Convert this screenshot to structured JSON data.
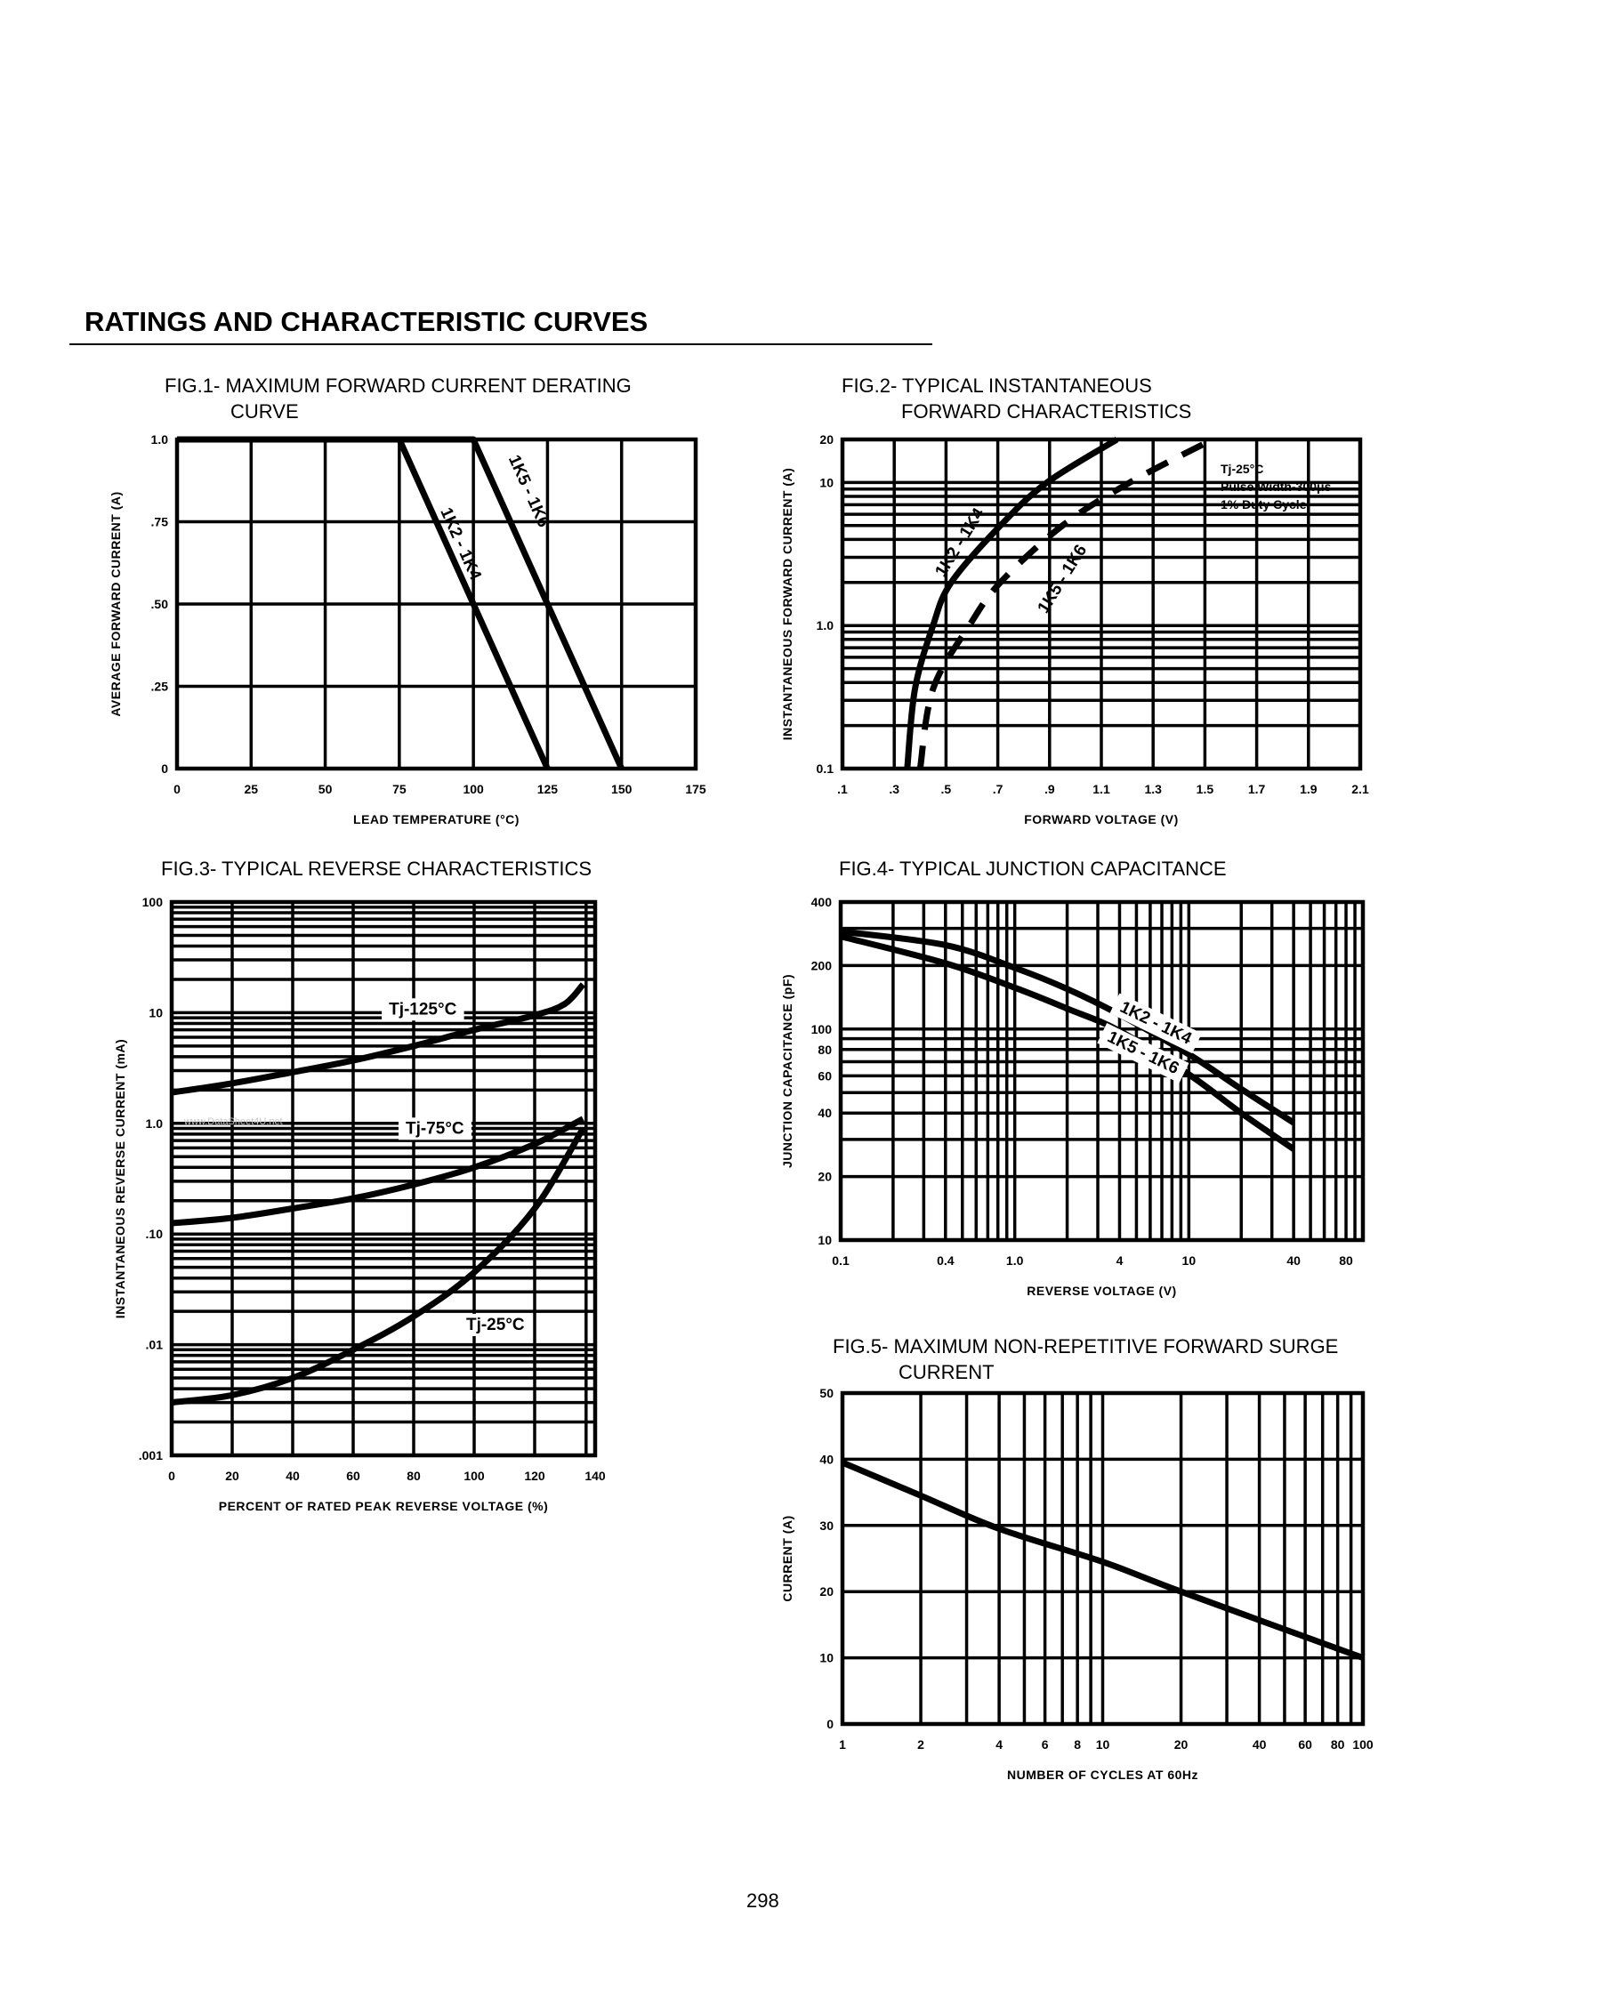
{
  "page": {
    "heading": "RATINGS AND CHARACTERISTIC CURVES",
    "page_number": "298",
    "watermark": "www.DataSheet4U.net"
  },
  "chart_data": [
    {
      "type": "line",
      "title": [
        "FIG.1- MAXIMUM FORWARD CURRENT DERATING",
        "CURVE"
      ],
      "xlabel": "LEAD TEMPERATURE (°C)",
      "ylabel": "AVERAGE FORWARD CURRENT (A)",
      "xscale": "linear",
      "yscale": "linear",
      "xlim": [
        0,
        175
      ],
      "ylim": [
        0,
        1.0
      ],
      "grid": true,
      "x_ticks": [
        {
          "value": 0,
          "label": "0"
        },
        {
          "value": 25,
          "label": "25"
        },
        {
          "value": 50,
          "label": "50"
        },
        {
          "value": 75,
          "label": "75"
        },
        {
          "value": 100,
          "label": "100"
        },
        {
          "value": 125,
          "label": "125"
        },
        {
          "value": 150,
          "label": "150"
        },
        {
          "value": 175,
          "label": "175"
        }
      ],
      "y_ticks": [
        {
          "value": 0,
          "label": "0"
        },
        {
          "value": 0.25,
          "label": ".25"
        },
        {
          "value": 0.5,
          "label": ".50"
        },
        {
          "value": 0.75,
          "label": ".75"
        },
        {
          "value": 1.0,
          "label": "1.0"
        }
      ],
      "series": [
        {
          "name": "1K2 - 1K4",
          "style": "solid",
          "points": [
            [
              0,
              1.0
            ],
            [
              75,
              1.0
            ],
            [
              125,
              0
            ]
          ]
        },
        {
          "name": "1K5 - 1K6",
          "style": "solid",
          "points": [
            [
              0,
              1.0
            ],
            [
              100,
              1.0
            ],
            [
              150,
              0
            ]
          ]
        }
      ],
      "notes": []
    },
    {
      "type": "line",
      "title": [
        "FIG.2- TYPICAL INSTANTANEOUS",
        "FORWARD CHARACTERISTICS"
      ],
      "xlabel": "FORWARD VOLTAGE (V)",
      "ylabel": "INSTANTANEOUS FORWARD CURRENT (A)",
      "xscale": "linear",
      "yscale": "log",
      "xlim": [
        0.1,
        2.1
      ],
      "ylim": [
        0.1,
        20
      ],
      "grid": true,
      "x_ticks": [
        {
          "value": 0.1,
          "label": ".1"
        },
        {
          "value": 0.3,
          "label": ".3"
        },
        {
          "value": 0.5,
          "label": ".5"
        },
        {
          "value": 0.7,
          "label": ".7"
        },
        {
          "value": 0.9,
          "label": ".9"
        },
        {
          "value": 1.1,
          "label": "1.1"
        },
        {
          "value": 1.3,
          "label": "1.3"
        },
        {
          "value": 1.5,
          "label": "1.5"
        },
        {
          "value": 1.7,
          "label": "1.7"
        },
        {
          "value": 1.9,
          "label": "1.9"
        },
        {
          "value": 2.1,
          "label": "2.1"
        }
      ],
      "y_ticks": [
        {
          "value": 0.1,
          "label": "0.1"
        },
        {
          "value": 1,
          "label": "1.0"
        },
        {
          "value": 10,
          "label": "10"
        },
        {
          "value": 20,
          "label": "20"
        }
      ],
      "series": [
        {
          "name": "1K2 - 1K4",
          "style": "solid",
          "points": [
            [
              0.35,
              0.1
            ],
            [
              0.38,
              0.36
            ],
            [
              0.45,
              1
            ],
            [
              0.52,
              2
            ],
            [
              0.71,
              5
            ],
            [
              0.89,
              10
            ],
            [
              1.16,
              20
            ]
          ]
        },
        {
          "name": "1K5 - 1K6",
          "style": "dashed",
          "points": [
            [
              0.4,
              0.1
            ],
            [
              0.45,
              0.36
            ],
            [
              0.59,
              1
            ],
            [
              0.71,
              2
            ],
            [
              0.95,
              5
            ],
            [
              1.21,
              10
            ],
            [
              1.53,
              20
            ]
          ]
        }
      ],
      "notes": [
        "Tj-25°C",
        "Pulse Width-300μs",
        "1% Duty Cycle"
      ]
    },
    {
      "type": "line",
      "title": [
        "FIG.3- TYPICAL REVERSE CHARACTERISTICS"
      ],
      "xlabel": "PERCENT OF RATED PEAK REVERSE VOLTAGE (%)",
      "ylabel": "INSTANTANEOUS REVERSE CURRENT (mA)",
      "xscale": "linear",
      "yscale": "log",
      "xlim": [
        0,
        140
      ],
      "ylim": [
        0.001,
        100
      ],
      "grid": true,
      "x_ticks": [
        {
          "value": 0,
          "label": "0"
        },
        {
          "value": 20,
          "label": "20"
        },
        {
          "value": 40,
          "label": "40"
        },
        {
          "value": 60,
          "label": "60"
        },
        {
          "value": 80,
          "label": "80"
        },
        {
          "value": 100,
          "label": "100"
        },
        {
          "value": 120,
          "label": "120"
        },
        {
          "value": 140,
          "label": "140"
        }
      ],
      "y_ticks": [
        {
          "value": 0.001,
          "label": ".001"
        },
        {
          "value": 0.01,
          "label": ".01"
        },
        {
          "value": 0.1,
          "label": ".10"
        },
        {
          "value": 1,
          "label": "1.0"
        },
        {
          "value": 10,
          "label": "10"
        },
        {
          "value": 100,
          "label": "100"
        }
      ],
      "series": [
        {
          "name": "Tj-125°C",
          "style": "solid",
          "points": [
            [
              0,
              1.9
            ],
            [
              20,
              2.3
            ],
            [
              40,
              2.9
            ],
            [
              60,
              3.7
            ],
            [
              80,
              5
            ],
            [
              100,
              7
            ],
            [
              120,
              9.5
            ],
            [
              130,
              12
            ],
            [
              136,
              18
            ]
          ]
        },
        {
          "name": "Tj-75°C",
          "style": "solid",
          "points": [
            [
              0,
              0.125
            ],
            [
              20,
              0.14
            ],
            [
              40,
              0.17
            ],
            [
              60,
              0.21
            ],
            [
              80,
              0.28
            ],
            [
              100,
              0.4
            ],
            [
              120,
              0.65
            ],
            [
              136,
              1.1
            ]
          ]
        },
        {
          "name": "Tj-25°C",
          "style": "solid",
          "points": [
            [
              0,
              0.003
            ],
            [
              20,
              0.0035
            ],
            [
              40,
              0.005
            ],
            [
              60,
              0.009
            ],
            [
              80,
              0.018
            ],
            [
              100,
              0.045
            ],
            [
              120,
              0.17
            ],
            [
              136,
              0.9
            ]
          ]
        }
      ],
      "notes": []
    },
    {
      "type": "line",
      "title": [
        "FIG.4- TYPICAL JUNCTION CAPACITANCE"
      ],
      "xlabel": "REVERSE VOLTAGE (V)",
      "ylabel": "JUNCTION CAPACITANCE (pF)",
      "xscale": "log",
      "yscale": "log",
      "xlim": [
        0.1,
        100
      ],
      "ylim": [
        10,
        400
      ],
      "grid": true,
      "x_ticks": [
        {
          "value": 0.1,
          "label": "0.1"
        },
        {
          "value": 0.4,
          "label": "0.4"
        },
        {
          "value": 1,
          "label": "1.0"
        },
        {
          "value": 4,
          "label": "4"
        },
        {
          "value": 10,
          "label": "10"
        },
        {
          "value": 40,
          "label": "40"
        },
        {
          "value": 80,
          "label": "80"
        }
      ],
      "y_ticks": [
        {
          "value": 10,
          "label": "10"
        },
        {
          "value": 20,
          "label": "20"
        },
        {
          "value": 40,
          "label": "40"
        },
        {
          "value": 60,
          "label": "60"
        },
        {
          "value": 80,
          "label": "80"
        },
        {
          "value": 100,
          "label": "100"
        },
        {
          "value": 200,
          "label": "200"
        },
        {
          "value": 400,
          "label": "400"
        }
      ],
      "series": [
        {
          "name": "1K2 - 1K4",
          "style": "solid",
          "points": [
            [
              0.1,
              290
            ],
            [
              0.4,
              250
            ],
            [
              1,
              195
            ],
            [
              2,
              155
            ],
            [
              4,
              117
            ],
            [
              10,
              76
            ],
            [
              20,
              52
            ],
            [
              40,
              36
            ]
          ]
        },
        {
          "name": "1K5 - 1K6",
          "style": "solid",
          "points": [
            [
              0.1,
              275
            ],
            [
              0.4,
              205
            ],
            [
              1,
              157
            ],
            [
              2,
              125
            ],
            [
              4,
              98
            ],
            [
              10,
              61
            ],
            [
              20,
              40
            ],
            [
              40,
              27
            ]
          ]
        }
      ],
      "notes": []
    },
    {
      "type": "line",
      "title": [
        "FIG.5- MAXIMUM NON-REPETITIVE FORWARD SURGE",
        "CURRENT"
      ],
      "xlabel": "NUMBER OF CYCLES AT 60Hz",
      "ylabel": "CURRENT (A)",
      "xscale": "log",
      "yscale": "linear",
      "xlim": [
        1,
        100
      ],
      "ylim": [
        0,
        50
      ],
      "grid": true,
      "x_ticks": [
        {
          "value": 1,
          "label": "1"
        },
        {
          "value": 2,
          "label": "2"
        },
        {
          "value": 4,
          "label": "4"
        },
        {
          "value": 6,
          "label": "6"
        },
        {
          "value": 8,
          "label": "8"
        },
        {
          "value": 10,
          "label": "10"
        },
        {
          "value": 20,
          "label": "20"
        },
        {
          "value": 40,
          "label": "40"
        },
        {
          "value": 60,
          "label": "60"
        },
        {
          "value": 80,
          "label": "80"
        },
        {
          "value": 100,
          "label": "100"
        }
      ],
      "y_ticks": [
        {
          "value": 0,
          "label": "0"
        },
        {
          "value": 10,
          "label": "10"
        },
        {
          "value": 20,
          "label": "20"
        },
        {
          "value": 30,
          "label": "30"
        },
        {
          "value": 40,
          "label": "40"
        },
        {
          "value": 50,
          "label": "50"
        }
      ],
      "series": [
        {
          "name": "",
          "style": "solid",
          "points": [
            [
              1,
              39.5
            ],
            [
              2,
              34.5
            ],
            [
              4,
              29.5
            ],
            [
              10,
              24.5
            ],
            [
              20,
              20
            ],
            [
              100,
              10
            ]
          ]
        }
      ],
      "notes": []
    }
  ]
}
